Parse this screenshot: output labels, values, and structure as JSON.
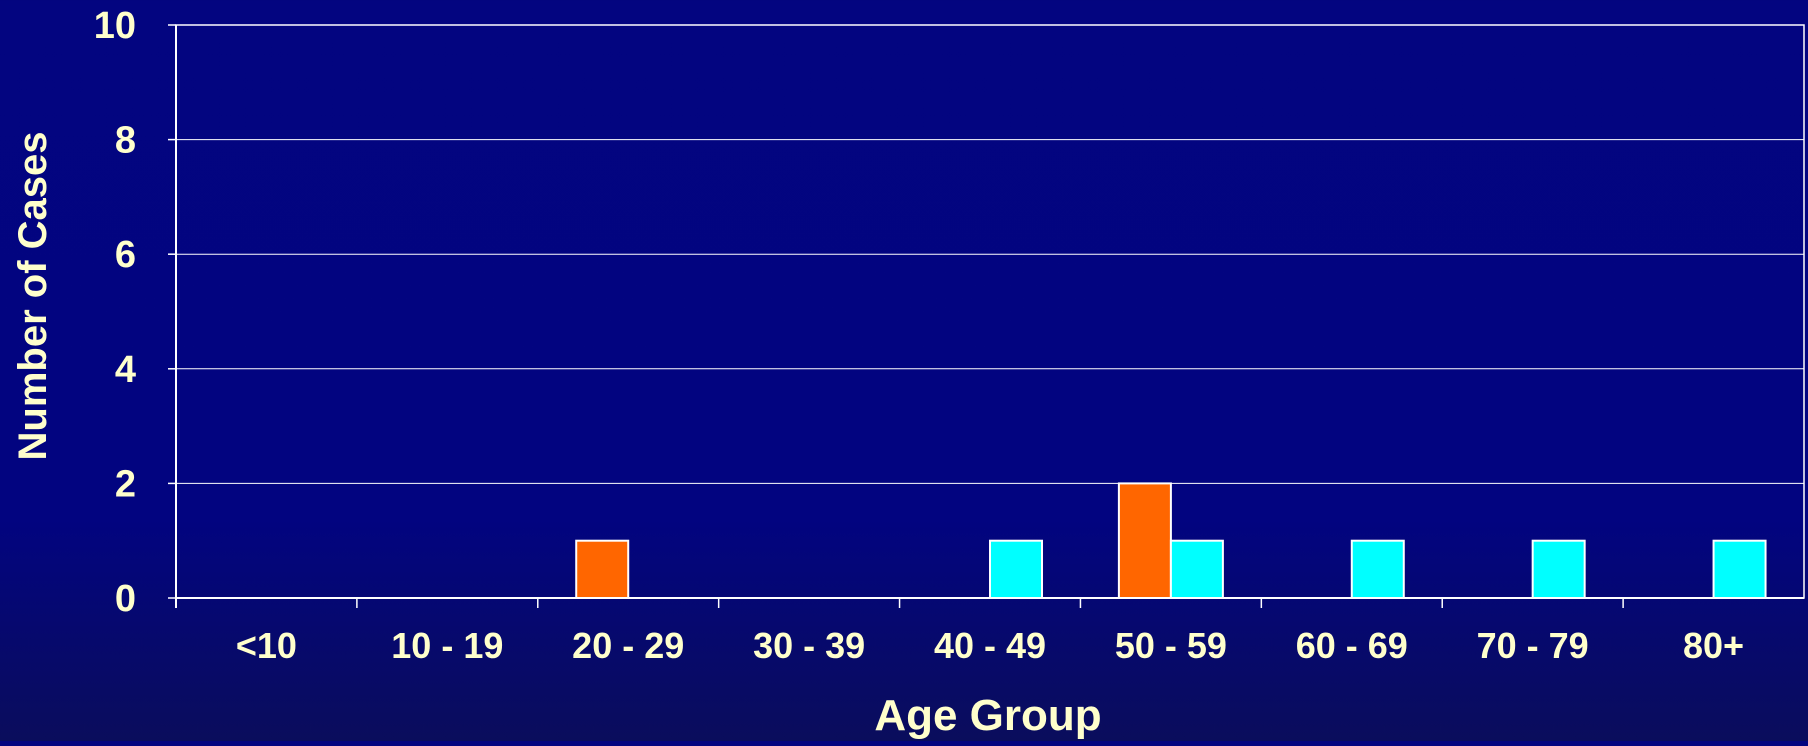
{
  "colors": {
    "background": "#03057f",
    "text": "#ffffcc",
    "gridline": "#ffffff",
    "series_a": "#ff6600",
    "series_b": "#00ffff"
  },
  "chart_data": {
    "type": "bar",
    "title": "",
    "xlabel": "Age Group",
    "ylabel": "Number of Cases",
    "categories": [
      "<10",
      "10 - 19",
      "20 - 29",
      "30 - 39",
      "40 - 49",
      "50 - 59",
      "60 - 69",
      "70 - 79",
      "80+"
    ],
    "series": [
      {
        "color": "#ff6600",
        "values": [
          0,
          0,
          1,
          0,
          0,
          2,
          0,
          0,
          0
        ]
      },
      {
        "color": "#00ffff",
        "values": [
          0,
          0,
          0,
          0,
          1,
          1,
          1,
          1,
          1
        ]
      }
    ],
    "ylim": [
      0,
      10
    ],
    "yticks": [
      0,
      2,
      4,
      6,
      8,
      10
    ],
    "grid": true,
    "legend": "none"
  }
}
